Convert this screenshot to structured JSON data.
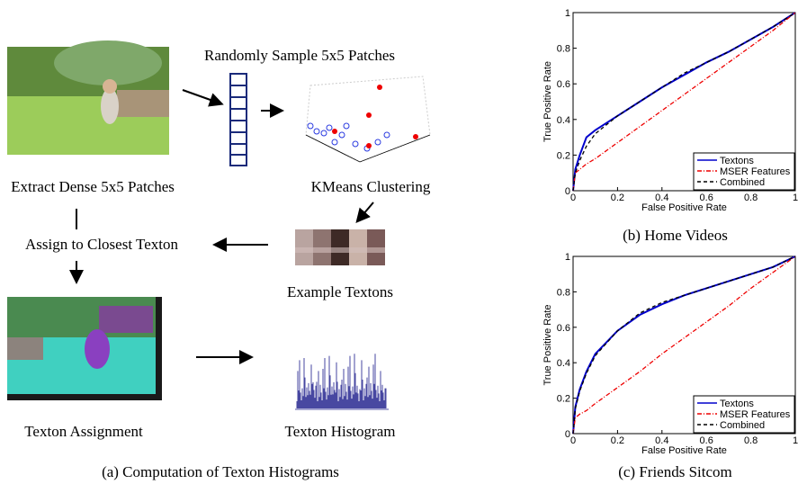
{
  "diagram": {
    "sample_label": "Randomly Sample 5x5 Patches",
    "extract_label": "Extract Dense 5x5 Patches",
    "kmeans_label": "KMeans Clustering",
    "assign_label": "Assign to Closest Texton",
    "textons_label": "Example Textons",
    "assignment_label": "Texton Assignment",
    "histogram_label": "Texton Histogram",
    "caption": "(a) Computation of Texton Histograms"
  },
  "chart_data": [
    {
      "type": "line",
      "caption": "(b) Home Videos",
      "xlabel": "False Positive Rate",
      "ylabel": "True Positive Rate",
      "x": [
        0,
        0.01,
        0.03,
        0.06,
        0.1,
        0.2,
        0.3,
        0.4,
        0.5,
        0.6,
        0.7,
        0.8,
        0.9,
        1
      ],
      "series": [
        {
          "name": "Textons",
          "color": "#0000cc",
          "style": "solid",
          "values": [
            0,
            0.12,
            0.2,
            0.3,
            0.34,
            0.42,
            0.5,
            0.58,
            0.65,
            0.72,
            0.78,
            0.85,
            0.92,
            1
          ]
        },
        {
          "name": "MSER Features",
          "color": "#ee0000",
          "style": "dashdot",
          "values": [
            0,
            0.1,
            0.12,
            0.15,
            0.18,
            0.27,
            0.36,
            0.45,
            0.54,
            0.63,
            0.72,
            0.81,
            0.9,
            1
          ]
        },
        {
          "name": "Combined",
          "color": "#000000",
          "style": "dashed",
          "values": [
            0,
            0.1,
            0.17,
            0.25,
            0.32,
            0.42,
            0.5,
            0.58,
            0.66,
            0.72,
            0.78,
            0.85,
            0.92,
            1
          ]
        }
      ],
      "xlim": [
        0,
        1
      ],
      "ylim": [
        0,
        1
      ],
      "xticks": [
        0,
        0.2,
        0.4,
        0.6,
        0.8,
        1
      ],
      "yticks": [
        0,
        0.2,
        0.4,
        0.6,
        0.8,
        1
      ],
      "legend": "lower right"
    },
    {
      "type": "line",
      "caption": "(c) Friends Sitcom",
      "xlabel": "False Positive Rate",
      "ylabel": "True Positive Rate",
      "x": [
        0,
        0.01,
        0.03,
        0.06,
        0.1,
        0.2,
        0.3,
        0.4,
        0.5,
        0.6,
        0.7,
        0.8,
        0.9,
        1
      ],
      "series": [
        {
          "name": "Textons",
          "color": "#0000cc",
          "style": "solid",
          "values": [
            0,
            0.15,
            0.25,
            0.35,
            0.45,
            0.58,
            0.67,
            0.73,
            0.78,
            0.82,
            0.86,
            0.9,
            0.94,
            1
          ]
        },
        {
          "name": "MSER Features",
          "color": "#ee0000",
          "style": "dashdot",
          "values": [
            0,
            0.09,
            0.11,
            0.13,
            0.17,
            0.26,
            0.35,
            0.45,
            0.54,
            0.63,
            0.72,
            0.82,
            0.91,
            1
          ]
        },
        {
          "name": "Combined",
          "color": "#000000",
          "style": "dashed",
          "values": [
            0,
            0.14,
            0.24,
            0.34,
            0.44,
            0.58,
            0.68,
            0.74,
            0.78,
            0.82,
            0.86,
            0.9,
            0.94,
            1
          ]
        }
      ],
      "xlim": [
        0,
        1
      ],
      "ylim": [
        0,
        1
      ],
      "xticks": [
        0,
        0.2,
        0.4,
        0.6,
        0.8,
        1
      ],
      "yticks": [
        0,
        0.2,
        0.4,
        0.6,
        0.8,
        1
      ],
      "legend": "lower right"
    }
  ]
}
